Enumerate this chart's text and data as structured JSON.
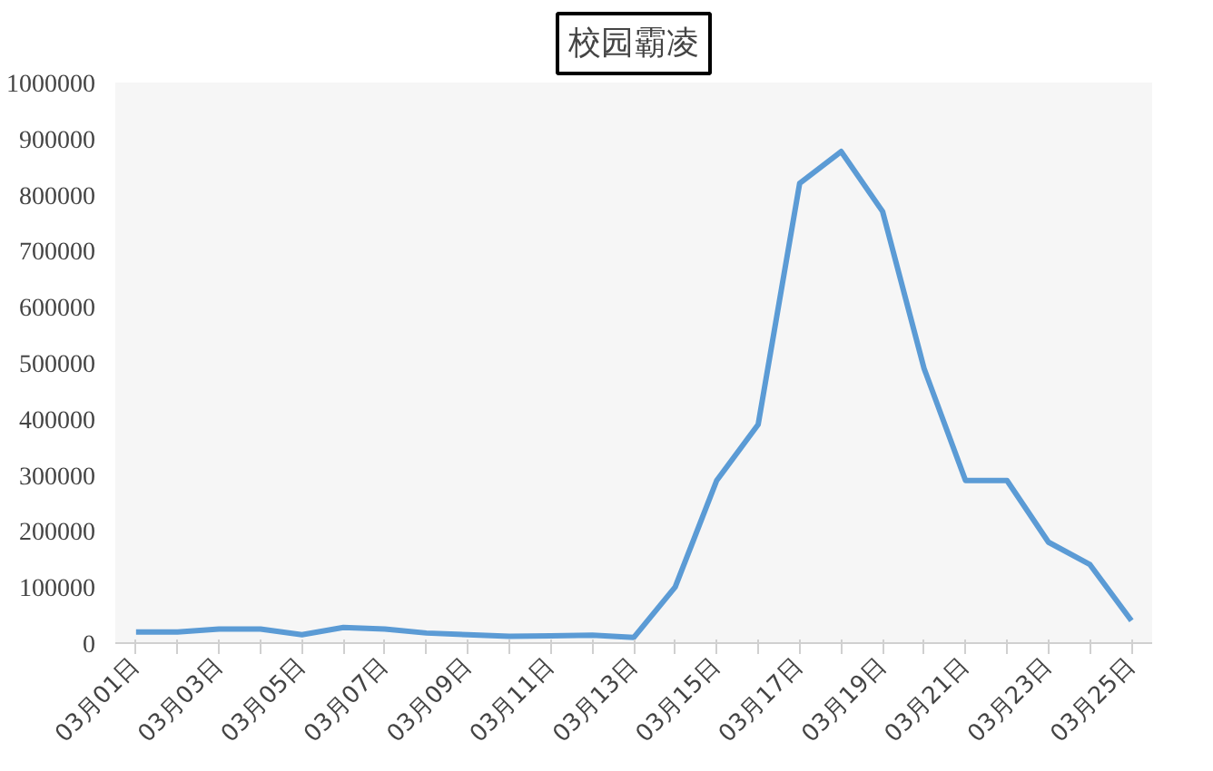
{
  "chart_data": {
    "type": "line",
    "title": "校园霸凌",
    "categories": [
      "03月01日",
      null,
      "03月03日",
      null,
      "03月05日",
      null,
      "03月07日",
      null,
      "03月09日",
      null,
      "03月11日",
      null,
      "03月13日",
      null,
      "03月15日",
      null,
      "03月17日",
      null,
      "03月19日",
      null,
      "03月21日",
      null,
      "03月23日",
      null,
      "03月25日"
    ],
    "series": [
      {
        "color": "#5b9bd5",
        "values": [
          20000,
          20000,
          25000,
          25000,
          15000,
          28000,
          25000,
          18000,
          15000,
          12000,
          13000,
          14000,
          10000,
          100000,
          290000,
          390000,
          820000,
          877000,
          770000,
          490000,
          290000,
          290000,
          180000,
          140000,
          40000
        ]
      }
    ],
    "ylim": [
      0,
      1000000
    ],
    "yticks": [
      0,
      100000,
      200000,
      300000,
      400000,
      500000,
      600000,
      700000,
      800000,
      900000,
      1000000
    ],
    "grid": false,
    "marker": "none",
    "line_style": "solid"
  }
}
